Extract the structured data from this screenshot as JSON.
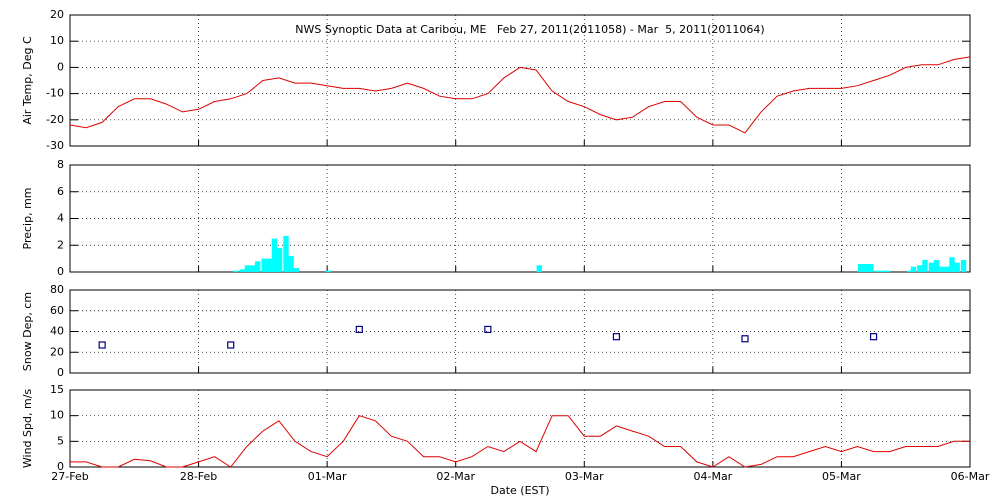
{
  "chart_data": [
    {
      "type": "line",
      "title": "NWS Synoptic Data at Caribou, ME   Feb 27, 2011(2011058) - Mar  5, 2011(2011064)",
      "y_label": "Air Temp, Deg C",
      "xlim": [
        0,
        7
      ],
      "xticks": [
        0,
        1,
        2,
        3,
        4,
        5,
        6,
        7
      ],
      "ylim": [
        -30,
        20
      ],
      "yticks": [
        -30,
        -20,
        -10,
        0,
        10,
        20
      ],
      "grid": true,
      "x": [
        0,
        0.125,
        0.25,
        0.375,
        0.5,
        0.625,
        0.75,
        0.875,
        1,
        1.125,
        1.25,
        1.375,
        1.5,
        1.625,
        1.75,
        1.875,
        2,
        2.125,
        2.25,
        2.375,
        2.5,
        2.625,
        2.75,
        2.875,
        3,
        3.125,
        3.25,
        3.375,
        3.5,
        3.625,
        3.75,
        3.875,
        4,
        4.125,
        4.25,
        4.375,
        4.5,
        4.625,
        4.75,
        4.875,
        5,
        5.125,
        5.25,
        5.375,
        5.5,
        5.625,
        5.75,
        5.875,
        6,
        6.125,
        6.25,
        6.375,
        6.5,
        6.625,
        6.75,
        6.875,
        7
      ],
      "series": [
        {
          "color": "#dd0000",
          "values": [
            -22,
            -23,
            -21,
            -15,
            -12,
            -12,
            -14,
            -17,
            -16,
            -13,
            -12,
            -10,
            -5,
            -4,
            -6,
            -6,
            -7,
            -8,
            -8,
            -9,
            -8,
            -6,
            -8,
            -11,
            -12,
            -12,
            -10,
            -4,
            0,
            -1,
            -9,
            -13,
            -15,
            -18,
            -20,
            -19,
            -15,
            -13,
            -13,
            -19,
            -22,
            -22,
            -25,
            -17,
            -11,
            -9,
            -8,
            -8,
            -8,
            -7,
            -5,
            -3,
            0,
            1,
            1,
            3,
            4
          ]
        }
      ]
    },
    {
      "type": "bar",
      "y_label": "Precip, mm",
      "xlim": [
        0,
        7
      ],
      "xticks": [
        0,
        1,
        2,
        3,
        4,
        5,
        6,
        7
      ],
      "ylim": [
        0,
        8
      ],
      "yticks": [
        0,
        2,
        4,
        6,
        8
      ],
      "grid": true,
      "x": [
        1.29,
        1.34,
        1.38,
        1.42,
        1.46,
        1.51,
        1.55,
        1.59,
        1.63,
        1.68,
        1.72,
        1.76,
        2.01,
        3.65,
        6.15,
        6.19,
        6.23,
        6.28,
        6.32,
        6.36,
        6.53,
        6.56,
        6.61,
        6.65,
        6.7,
        6.74,
        6.78,
        6.82,
        6.86,
        6.9,
        6.95
      ],
      "series": [
        {
          "color": "#00ffff",
          "values": [
            0.1,
            0.2,
            0.5,
            0.5,
            0.8,
            1.0,
            1.0,
            2.5,
            1.8,
            2.7,
            1.2,
            0.3,
            0.1,
            0.5,
            0.6,
            0.6,
            0.6,
            0.1,
            0.1,
            0.1,
            0.1,
            0.4,
            0.5,
            0.9,
            0.7,
            0.9,
            0.4,
            0.4,
            1.1,
            0.7,
            0.9
          ]
        }
      ]
    },
    {
      "type": "scatter",
      "y_label": "Snow Dep, cm",
      "xlim": [
        0,
        7
      ],
      "xticks": [
        0,
        1,
        2,
        3,
        4,
        5,
        6,
        7
      ],
      "ylim": [
        0,
        80
      ],
      "yticks": [
        0,
        20,
        40,
        60,
        80
      ],
      "grid": true,
      "x": [
        0.25,
        1.25,
        2.25,
        3.25,
        4.25,
        5.25,
        6.25
      ],
      "series": [
        {
          "color": "#000080",
          "values": [
            27,
            27,
            42,
            42,
            35,
            33,
            35
          ]
        }
      ]
    },
    {
      "type": "line",
      "y_label": "Wind Spd, m/s",
      "x_label": "Date (EST)",
      "xlim": [
        0,
        7
      ],
      "xticks": [
        {
          "value": 0,
          "label": "27-Feb"
        },
        {
          "value": 1,
          "label": "28-Feb"
        },
        {
          "value": 2,
          "label": "01-Mar"
        },
        {
          "value": 3,
          "label": "02-Mar"
        },
        {
          "value": 4,
          "label": "03-Mar"
        },
        {
          "value": 5,
          "label": "04-Mar"
        },
        {
          "value": 6,
          "label": "05-Mar"
        },
        {
          "value": 7,
          "label": "06-Mar"
        }
      ],
      "ylim": [
        0,
        15
      ],
      "yticks": [
        0,
        5,
        10,
        15
      ],
      "grid": true,
      "x": [
        0,
        0.125,
        0.25,
        0.375,
        0.5,
        0.625,
        0.75,
        0.875,
        1,
        1.125,
        1.25,
        1.375,
        1.5,
        1.625,
        1.75,
        1.875,
        2,
        2.125,
        2.25,
        2.375,
        2.5,
        2.625,
        2.75,
        2.875,
        3,
        3.125,
        3.25,
        3.375,
        3.5,
        3.625,
        3.75,
        3.875,
        4,
        4.125,
        4.25,
        4.375,
        4.5,
        4.625,
        4.75,
        4.875,
        5,
        5.125,
        5.25,
        5.375,
        5.5,
        5.625,
        5.75,
        5.875,
        6,
        6.125,
        6.25,
        6.375,
        6.5,
        6.625,
        6.75,
        6.875,
        7
      ],
      "series": [
        {
          "color": "#dd0000",
          "values": [
            1,
            1,
            0,
            0,
            1.5,
            1.2,
            0,
            0,
            1,
            2,
            0,
            4,
            7,
            9,
            5,
            3,
            2,
            5,
            10,
            9,
            6,
            5,
            2,
            2,
            1,
            2,
            4,
            3,
            5,
            3,
            10,
            10,
            6,
            6,
            8,
            7,
            6,
            4,
            4,
            1,
            0,
            2,
            0,
            0.5,
            2,
            2,
            3,
            4,
            3,
            4,
            3,
            3,
            4,
            4,
            4,
            5,
            5
          ]
        }
      ]
    }
  ]
}
